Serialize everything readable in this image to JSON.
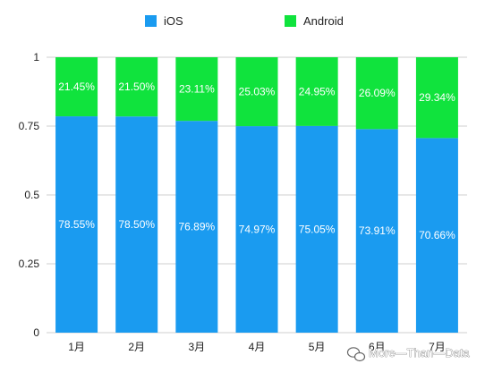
{
  "chart_data": {
    "type": "bar",
    "stacked": true,
    "categories": [
      "1月",
      "2月",
      "3月",
      "4月",
      "5月",
      "6月",
      "7月"
    ],
    "series": [
      {
        "name": "iOS",
        "color": "#1a9bf0",
        "values": [
          0.7855,
          0.785,
          0.7689,
          0.7497,
          0.7505,
          0.7391,
          0.7066
        ],
        "labels": [
          "78.55%",
          "78.50%",
          "76.89%",
          "74.97%",
          "75.05%",
          "73.91%",
          "70.66%"
        ]
      },
      {
        "name": "Android",
        "color": "#10e33d",
        "values": [
          0.2145,
          0.215,
          0.2311,
          0.2503,
          0.2495,
          0.2609,
          0.2934
        ],
        "labels": [
          "21.45%",
          "21.50%",
          "23.11%",
          "25.03%",
          "24.95%",
          "26.09%",
          "29.34%"
        ]
      }
    ],
    "y_ticks": [
      0,
      0.25,
      0.5,
      0.75,
      1
    ],
    "y_tick_labels": [
      "0",
      "0.25",
      "0.5",
      "0.75",
      "1"
    ],
    "ylim": [
      0,
      1
    ],
    "grid": true,
    "legend_position": "top",
    "title": "",
    "xlabel": "",
    "ylabel": ""
  },
  "watermark": {
    "text": "More—Than—Data",
    "icon": "wechat-icon"
  }
}
